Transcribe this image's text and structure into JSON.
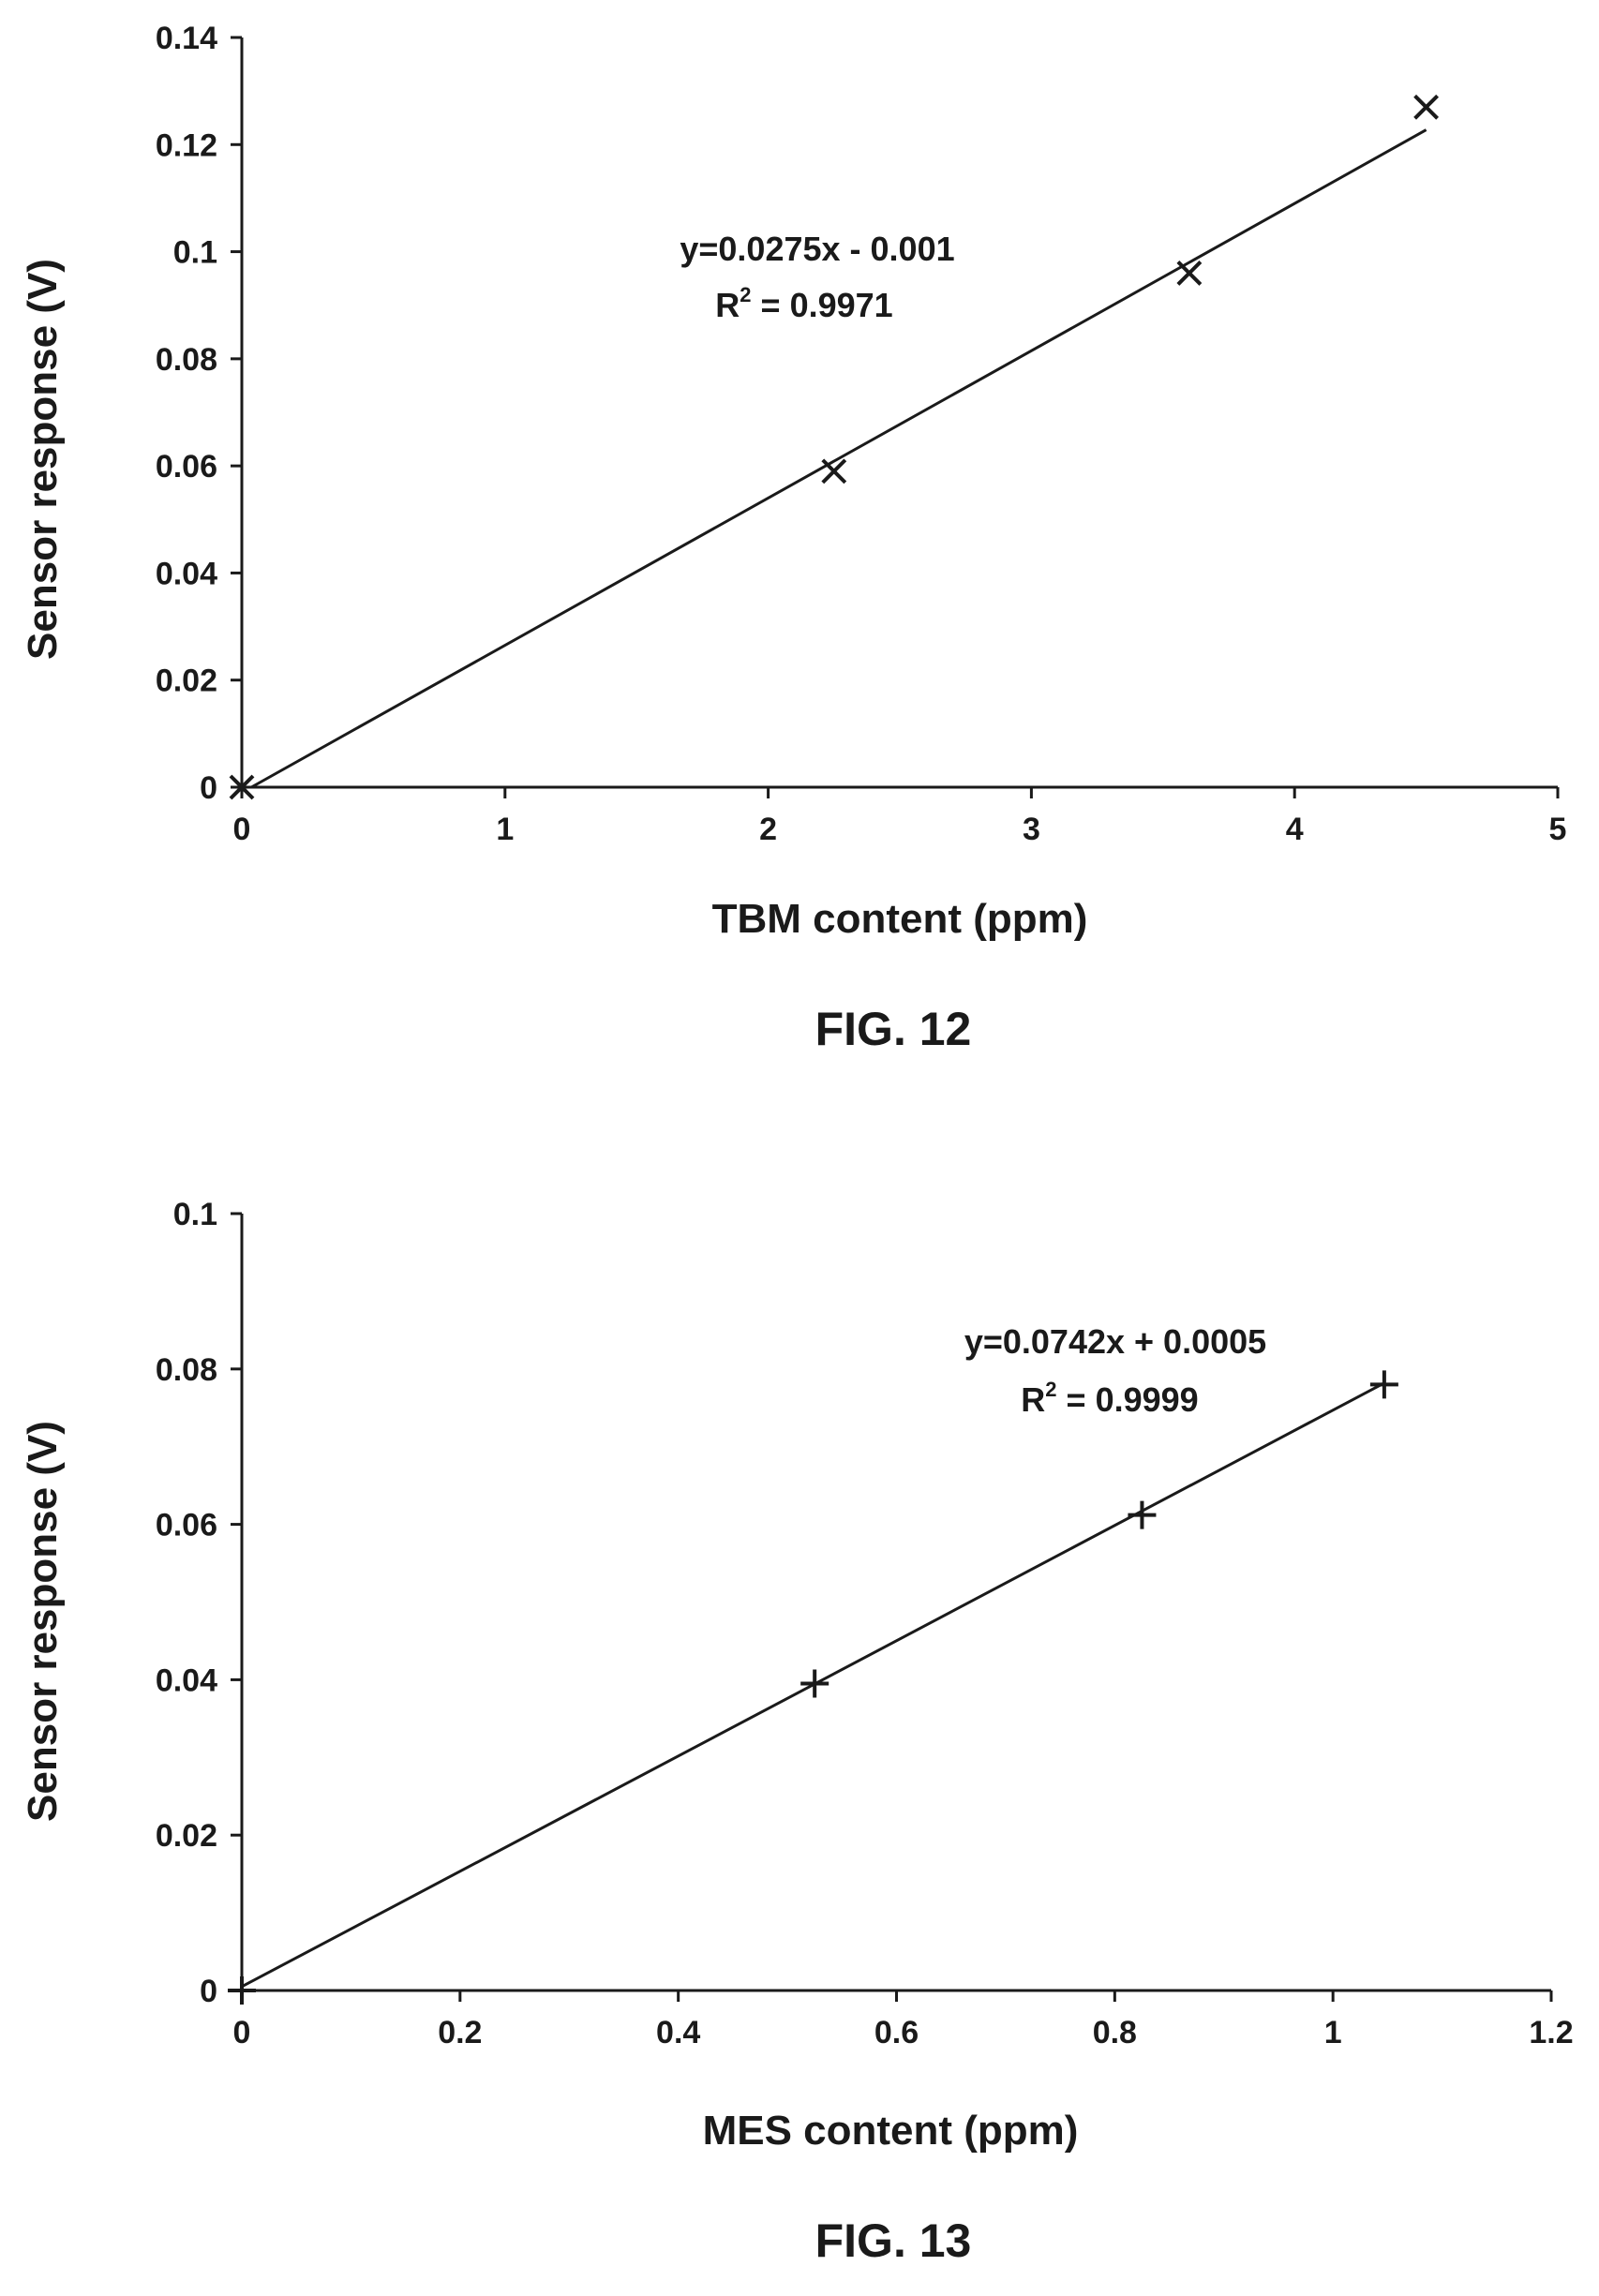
{
  "chart_data": [
    {
      "type": "scatter",
      "caption": "FIG. 12",
      "xlabel": "TBM content (ppm)",
      "ylabel": "Sensor response (V)",
      "xlim": [
        0,
        5
      ],
      "ylim": [
        0,
        0.14
      ],
      "xticks": [
        "0",
        "1",
        "2",
        "3",
        "4",
        "5"
      ],
      "yticks": [
        "0",
        "0.02",
        "0.04",
        "0.06",
        "0.08",
        "0.1",
        "0.12",
        "0.14"
      ],
      "grid": false,
      "marker": "x",
      "series": [
        {
          "x": [
            0,
            2.25,
            3.6,
            4.5
          ],
          "y": [
            0,
            0.059,
            0.096,
            0.127
          ]
        }
      ],
      "trendline": {
        "slope": 0.0275,
        "intercept": -0.001,
        "x_range": [
          0,
          4.5
        ]
      },
      "annotation": {
        "equation": "y=0.0275x - 0.001",
        "r2_prefix": "R",
        "r2_sup": "2",
        "r2_value": " = 0.9971"
      }
    },
    {
      "type": "scatter",
      "caption": "FIG. 13",
      "xlabel": "MES content (ppm)",
      "ylabel": "Sensor response (V)",
      "xlim": [
        0,
        1.2
      ],
      "ylim": [
        0,
        0.1
      ],
      "xticks": [
        "0",
        "0.2",
        "0.4",
        "0.6",
        "0.8",
        "1",
        "1.2"
      ],
      "yticks": [
        "0",
        "0.02",
        "0.04",
        "0.06",
        "0.08",
        "0.1"
      ],
      "grid": false,
      "marker": "plus",
      "series": [
        {
          "x": [
            0,
            0.525,
            0.825,
            1.047
          ],
          "y": [
            0,
            0.0395,
            0.0612,
            0.078
          ]
        }
      ],
      "trendline": {
        "slope": 0.0742,
        "intercept": 0.0005,
        "x_range": [
          0,
          1.047
        ]
      },
      "annotation": {
        "equation": "y=0.0742x + 0.0005",
        "r2_prefix": "R",
        "r2_sup": "2",
        "r2_value": " = 0.9999"
      }
    }
  ]
}
